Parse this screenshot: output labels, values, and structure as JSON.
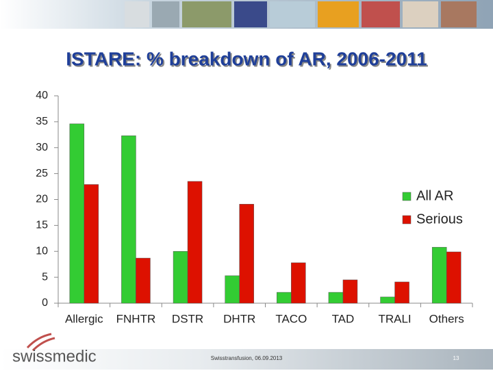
{
  "chart_data": {
    "type": "bar",
    "title": "ISTARE: % breakdown of AR, 2006-2011",
    "categories": [
      "Allergic",
      "FNHTR",
      "DSTR",
      "DHTR",
      "TACO",
      "TAD",
      "TRALI",
      "Others"
    ],
    "series": [
      {
        "name": "All AR",
        "color": "#33cc33",
        "values": [
          34.6,
          32.3,
          10,
          5.3,
          2.1,
          2.1,
          1.2,
          10.8
        ]
      },
      {
        "name": "Serious",
        "color": "#dd1100",
        "values": [
          22.9,
          8.7,
          23.5,
          19.1,
          7.8,
          4.5,
          4.1,
          9.9
        ]
      }
    ],
    "ylim": [
      0,
      40
    ],
    "yticks": [
      0,
      5,
      10,
      15,
      20,
      25,
      30,
      35,
      40
    ],
    "grid": false,
    "legend": "right"
  },
  "footer": {
    "logo": "swissmedic",
    "event": "Swisstransfusion, 06.09.2013",
    "page": "13"
  }
}
